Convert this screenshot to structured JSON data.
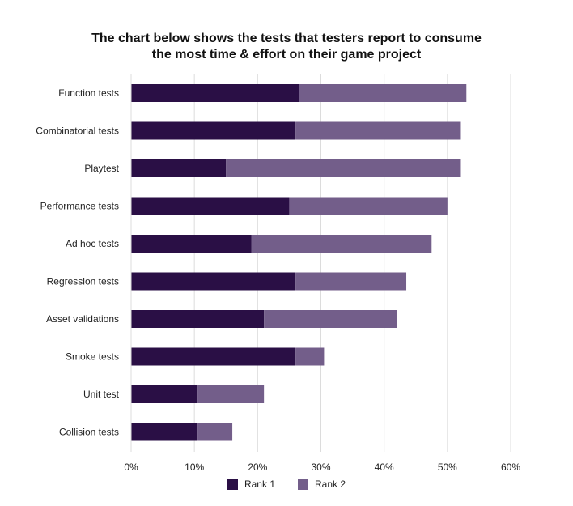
{
  "chart_data": {
    "type": "bar",
    "orientation": "horizontal",
    "stacked": true,
    "title_lines": [
      "The chart below shows the tests that testers report to consume",
      "the most time & effort on their game project"
    ],
    "categories": [
      "Function tests",
      "Combinatorial tests",
      "Playtest",
      "Performance tests",
      "Ad hoc tests",
      "Regression tests",
      "Asset validations",
      "Smoke tests",
      "Unit test",
      "Collision tests"
    ],
    "series": [
      {
        "name": "Rank 1",
        "color": "#2a0f45",
        "values": [
          26.5,
          26,
          15,
          25,
          19,
          26,
          21,
          26,
          10.5,
          10.5
        ]
      },
      {
        "name": "Rank 2",
        "color": "#735e8a",
        "values": [
          26.5,
          26,
          37,
          25,
          28.5,
          17.5,
          21,
          4.5,
          10.5,
          5.5
        ]
      }
    ],
    "xlim": [
      0,
      60
    ],
    "xticks": [
      "0%",
      "10%",
      "20%",
      "30%",
      "40%",
      "50%",
      "60%"
    ],
    "grid": true,
    "legend_position": "bottom"
  }
}
